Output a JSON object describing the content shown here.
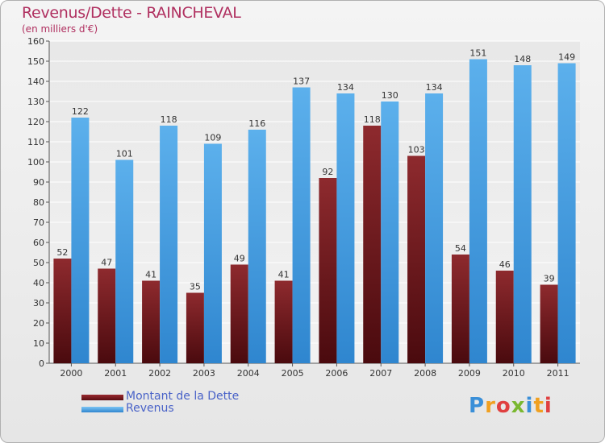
{
  "chart_data": {
    "type": "bar",
    "title": "Revenus/Dette - RAINCHEVAL",
    "subtitle": "(en milliers d'€)",
    "categories": [
      "2000",
      "2001",
      "2002",
      "2003",
      "2004",
      "2005",
      "2006",
      "2007",
      "2008",
      "2009",
      "2010",
      "2011"
    ],
    "series": [
      {
        "name": "Montant de la Dette",
        "color": "#7a1e24",
        "values": [
          52,
          47,
          41,
          35,
          49,
          41,
          92,
          118,
          103,
          54,
          46,
          39
        ]
      },
      {
        "name": "Revenus",
        "color": "#4aa3e6",
        "values": [
          122,
          101,
          118,
          109,
          116,
          137,
          134,
          130,
          134,
          151,
          148,
          149
        ]
      }
    ],
    "ylim": [
      0,
      160
    ],
    "ytick_step": 10,
    "grid": true,
    "legend": "bottom-left"
  },
  "logo": {
    "letters": [
      "P",
      "r",
      "o",
      "x",
      "i",
      "t",
      "i"
    ],
    "colors": [
      "#3a8fd8",
      "#f0a020",
      "#e04040",
      "#7ab830",
      "#3a8fd8",
      "#f0a020",
      "#e04040"
    ]
  }
}
